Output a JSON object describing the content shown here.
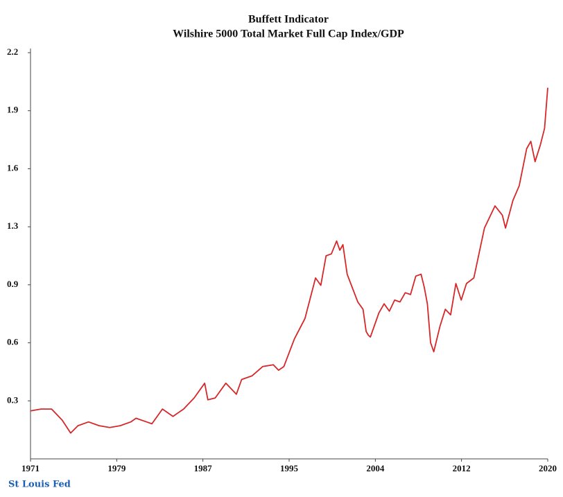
{
  "chart_data": {
    "type": "line",
    "title": "Buffett Indicator",
    "subtitle": "Wilshire 5000 Total Market Full Cap Index/GDP",
    "source": "St Louis Fed",
    "x": [
      1971,
      1972,
      1973,
      1974,
      1974.8,
      1975.5,
      1976.5,
      1977.5,
      1978.5,
      1979.5,
      1980.5,
      1981,
      1982,
      1982.5,
      1983.5,
      1984.5,
      1985.5,
      1986.5,
      1987.5,
      1987.8,
      1988.5,
      1989.5,
      1990.5,
      1991,
      1992,
      1993,
      1994,
      1994.5,
      1995,
      1996,
      1997,
      1998,
      1998.5,
      1999,
      1999.5,
      2000,
      2000.3,
      2000.6,
      2001,
      2002,
      2002.5,
      2002.8,
      2003,
      2003.2,
      2004,
      2004.5,
      2005,
      2005.5,
      2006,
      2006.5,
      2007,
      2007.5,
      2008,
      2008.3,
      2008.6,
      2008.9,
      2009.2,
      2009.8,
      2010.3,
      2010.8,
      2011.3,
      2011.8,
      2012.3,
      2013,
      2014,
      2015,
      2015.7,
      2016,
      2016.7,
      2017.3,
      2018,
      2018.4,
      2018.8,
      2019.3,
      2019.7,
      2020
    ],
    "series": [
      {
        "name": "Buffett Indicator",
        "color": "#d62728",
        "values": [
          0.26,
          0.27,
          0.27,
          0.21,
          0.14,
          0.18,
          0.2,
          0.18,
          0.17,
          0.18,
          0.2,
          0.22,
          0.2,
          0.19,
          0.27,
          0.23,
          0.27,
          0.33,
          0.41,
          0.32,
          0.33,
          0.41,
          0.35,
          0.43,
          0.45,
          0.5,
          0.51,
          0.48,
          0.5,
          0.65,
          0.76,
          0.98,
          0.94,
          1.1,
          1.11,
          1.18,
          1.13,
          1.16,
          1.0,
          0.85,
          0.81,
          0.69,
          0.67,
          0.66,
          0.79,
          0.84,
          0.8,
          0.86,
          0.85,
          0.9,
          0.89,
          0.99,
          1.0,
          0.93,
          0.84,
          0.63,
          0.58,
          0.72,
          0.81,
          0.78,
          0.95,
          0.86,
          0.95,
          0.98,
          1.25,
          1.37,
          1.32,
          1.25,
          1.4,
          1.48,
          1.68,
          1.72,
          1.61,
          1.7,
          1.79,
          2.01
        ]
      }
    ],
    "xlim": [
      1971,
      2020
    ],
    "xticks": [
      1971,
      {
        "value": 1979.17,
        "label": "1979"
      },
      {
        "value": 1987.33,
        "label": "1987"
      },
      {
        "value": 1995.5,
        "label": "1995"
      },
      {
        "value": 2003.67,
        "label": "2004"
      },
      {
        "value": 2011.83,
        "label": "2012"
      },
      2020
    ],
    "ylim": [
      0,
      2.2
    ],
    "yticks": [
      {
        "value": 0.3143,
        "label": "0.3"
      },
      {
        "value": 0.6286,
        "label": "0.6"
      },
      {
        "value": 0.9429,
        "label": "0.9"
      },
      {
        "value": 1.2571,
        "label": "1.3"
      },
      {
        "value": 1.5714,
        "label": "1.6"
      },
      {
        "value": 1.8857,
        "label": "1.9"
      },
      2.2
    ],
    "grid": false
  }
}
